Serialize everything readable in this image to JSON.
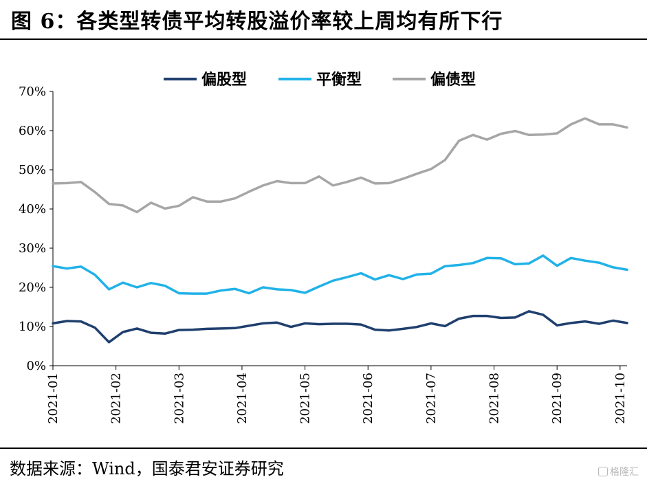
{
  "header": {
    "title": "图 6：各类型转债平均转股溢价率较上周均有所下行"
  },
  "footer": {
    "source": "数据来源：Wind，国泰君安证券研究",
    "watermark": "格隆汇"
  },
  "chart_data": {
    "type": "line",
    "title": "",
    "xlabel": "",
    "ylabel": "",
    "ylim": [
      0,
      70
    ],
    "yticks": [
      "0%",
      "10%",
      "20%",
      "30%",
      "40%",
      "50%",
      "60%",
      "70%"
    ],
    "x_tick_labels": [
      "2021-01",
      "2021-02",
      "2021-03",
      "2021-04",
      "2021-05",
      "2021-06",
      "2021-07",
      "2021-08",
      "2021-09",
      "2021-10"
    ],
    "x_tick_index": [
      0,
      4.5,
      9,
      13.5,
      18,
      22.5,
      27,
      31.5,
      36,
      40.5
    ],
    "legend_position": "top-center",
    "grid": false,
    "series": [
      {
        "name": "偏股型",
        "color": "#1f3f6e",
        "values": [
          10.8,
          11.4,
          11.3,
          9.7,
          6.0,
          8.6,
          9.5,
          8.4,
          8.2,
          9.1,
          9.2,
          9.4,
          9.5,
          9.6,
          10.2,
          10.8,
          11.0,
          9.9,
          10.8,
          10.6,
          10.7,
          10.7,
          10.5,
          9.2,
          9.0,
          9.4,
          9.9,
          10.8,
          10.1,
          12.0,
          12.7,
          12.7,
          12.2,
          12.3,
          13.9,
          13.0,
          10.3,
          10.9,
          11.3,
          10.7,
          11.5,
          10.9
        ]
      },
      {
        "name": "平衡型",
        "color": "#21b2e8",
        "values": [
          25.4,
          24.8,
          25.3,
          23.2,
          19.5,
          21.2,
          20.0,
          21.1,
          20.4,
          18.5,
          18.4,
          18.4,
          19.2,
          19.6,
          18.5,
          20.0,
          19.5,
          19.3,
          18.6,
          20.2,
          21.7,
          22.6,
          23.6,
          22.0,
          23.1,
          22.1,
          23.3,
          23.5,
          25.4,
          25.7,
          26.2,
          27.5,
          27.4,
          25.9,
          26.1,
          28.1,
          25.5,
          27.5,
          26.8,
          26.3,
          25.1,
          24.5
        ]
      },
      {
        "name": "偏债型",
        "color": "#a6a6a6",
        "values": [
          46.5,
          46.6,
          46.9,
          44.3,
          41.3,
          40.9,
          39.2,
          41.6,
          40.1,
          40.8,
          43.0,
          41.9,
          41.9,
          42.7,
          44.4,
          46.0,
          47.1,
          46.6,
          46.6,
          48.3,
          46.0,
          46.9,
          48.0,
          46.5,
          46.6,
          47.7,
          49.0,
          50.2,
          52.5,
          57.4,
          58.9,
          57.7,
          59.2,
          59.9,
          58.9,
          59.0,
          59.3,
          61.6,
          63.1,
          61.6,
          61.6,
          60.8
        ]
      }
    ]
  }
}
